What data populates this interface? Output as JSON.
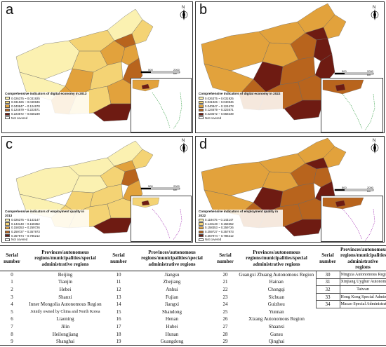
{
  "panels": [
    {
      "letter": "a",
      "legend_title": "Comprehensive indicators of digital economy in 2013",
      "legend_items": [
        "0.026375 ~ 0.031925",
        "0.031926 ~ 0.040846",
        "0.040847 ~ 0.124678",
        "0.124679 ~ 0.223571",
        "0.223572 ~ 0.668239"
      ],
      "not_covered": "Not covered"
    },
    {
      "letter": "b",
      "legend_title": "Comprehensive indicators of digital economy in 2022",
      "legend_items": [
        "0.026375 ~ 0.031925",
        "0.031926 ~ 0.040846",
        "0.040847 ~ 0.124678",
        "0.124679 ~ 0.223571",
        "0.223572 ~ 0.668239"
      ],
      "not_covered": "Not covered"
    },
    {
      "letter": "c",
      "legend_title": "Comprehensive indicators of employment quality in 2013",
      "legend_items": [
        "0.026375 ~ 0.143147",
        "0.143148 ~ 0.158352",
        "0.158353 ~ 0.259726",
        "0.259727 ~ 0.357973",
        "0.357974 ~ 0.786212"
      ],
      "not_covered": "Not covered"
    },
    {
      "letter": "d",
      "legend_title": "Comprehensive indicators of employment quality in 2022",
      "legend_items": [
        "0.119475 ~ 0.143147",
        "0.143148 ~ 0.158352",
        "0.158353 ~ 0.259726",
        "0.259727 ~ 0.357973",
        "0.357974 ~ 0.786212"
      ],
      "not_covered": "Not covered"
    }
  ],
  "legend_colors": [
    "#fbf1b1",
    "#f4d374",
    "#e2a23c",
    "#b8641d",
    "#6e1b12"
  ],
  "map_labels": {
    "compass_n": "N",
    "scale_0": "0",
    "scale_mid": "500",
    "scale_end": "2000 km",
    "inset_scale": "400 km",
    "inset_scale_0": "0"
  },
  "table": {
    "headers": [
      "Serial number",
      "Provinces/autonomous regions/municipalities/special administrative regions",
      "Serial number",
      "Provinces/autonomous regions/municipalities/special administrative regions",
      "Serial number",
      "Provinces/autonomous regions/municipalities/special administrative regions",
      "Serial number",
      "Provinces/autonomous regions/municipalities/special administrative regions"
    ],
    "rows": [
      [
        "0",
        "Beijing",
        "10",
        "Jiangsu",
        "20",
        "Guangxi Zhuang Autonomous Region",
        "30",
        "Ningxia Autonomous Region"
      ],
      [
        "1",
        "Tianjin",
        "11",
        "Zhejiang",
        "21",
        "Hainan",
        "31",
        "Xinjiang Uyghur Autonomous Region"
      ],
      [
        "2",
        "Hebei",
        "12",
        "Anhui",
        "22",
        "Chongqi",
        "32",
        "Taiwan"
      ],
      [
        "3",
        "Shanxi",
        "13",
        "Fujian",
        "23",
        "Sichuan",
        "33",
        "Hong Kong Special Administrative Region"
      ],
      [
        "4",
        "Inner Mongolia Autonomous Region",
        "14",
        "Jiangxi",
        "24",
        "Guizhou",
        "34",
        "Macao Special Administrative Region"
      ],
      [
        "5",
        "Jointly owned by China and North Korea",
        "15",
        "Shandong",
        "25",
        "Yunnan",
        "",
        ""
      ],
      [
        "6",
        "Liaoning",
        "16",
        "Henan",
        "26",
        "Xizang Autonomous Region",
        "",
        ""
      ],
      [
        "7",
        "Jilin",
        "17",
        "Hubei",
        "27",
        "Shaanxi",
        "",
        ""
      ],
      [
        "8",
        "Heilongjiang",
        "18",
        "Hunan",
        "28",
        "Gansu",
        "",
        ""
      ],
      [
        "9",
        "Shanghai",
        "19",
        "Guangdong",
        "29",
        "Qinghai",
        "",
        ""
      ]
    ]
  }
}
